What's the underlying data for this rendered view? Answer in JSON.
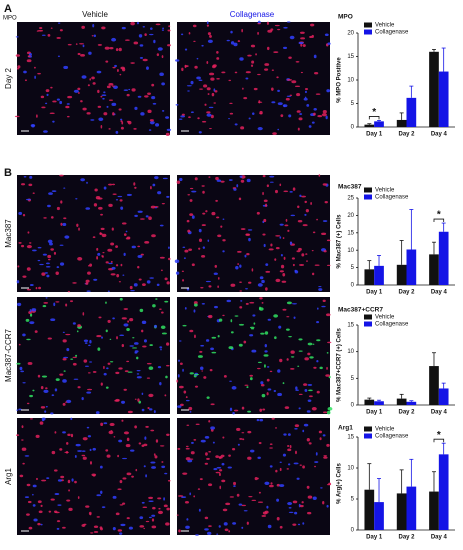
{
  "panels": [
    {
      "label": "A",
      "stain": "MPO",
      "columns": [
        "Vehicle",
        "Collagenase"
      ],
      "rows": [
        "Day 2"
      ]
    },
    {
      "label": "B",
      "columns": [
        "Vehicle",
        "Collagenase"
      ],
      "rows": [
        "Mac387",
        "Mac387-CCR7",
        "Arg1"
      ]
    }
  ],
  "chart_data": [
    {
      "type": "bar",
      "title": "MPO",
      "y_label": "% MPO Positive",
      "categories": [
        "Day 1",
        "Day 2",
        "Day 4"
      ],
      "series": [
        {
          "name": "Vehicle",
          "color": "#111111",
          "values": [
            0.5,
            1.5,
            16
          ],
          "errors": [
            0.2,
            1.5,
            0.5
          ]
        },
        {
          "name": "Collagenase",
          "color": "#1414e6",
          "values": [
            1.2,
            6.2,
            11.8
          ],
          "errors": [
            0.2,
            2.5,
            5
          ]
        }
      ],
      "ylim": [
        0,
        20
      ],
      "yticks": [
        0,
        5,
        10,
        15,
        20
      ],
      "annotations": [
        {
          "text": "*",
          "x": "Day 1"
        }
      ]
    },
    {
      "type": "bar",
      "title": "Mac387",
      "y_label": "% Mac387 (+) Cells",
      "categories": [
        "Day 1",
        "Day 2",
        "Day 4"
      ],
      "series": [
        {
          "name": "Vehicle",
          "color": "#111111",
          "values": [
            4.5,
            5.8,
            8.8
          ],
          "errors": [
            2.5,
            7,
            3.5
          ]
        },
        {
          "name": "Collagenase",
          "color": "#1414e6",
          "values": [
            5.5,
            10.2,
            15.3
          ],
          "errors": [
            3,
            11.5,
            2.5
          ]
        }
      ],
      "ylim": [
        0,
        25
      ],
      "yticks": [
        0,
        5,
        10,
        15,
        20,
        25
      ],
      "annotations": [
        {
          "text": "*",
          "x": "Day 4"
        }
      ]
    },
    {
      "type": "bar",
      "title": "Mac387+CCR7",
      "y_label": "% Mac387+CCR7 (+) Cells",
      "categories": [
        "Day 1",
        "Day 2",
        "Day 4"
      ],
      "series": [
        {
          "name": "Vehicle",
          "color": "#111111",
          "values": [
            1,
            1.2,
            7.3
          ],
          "errors": [
            0.3,
            0.8,
            2.5
          ]
        },
        {
          "name": "Collagenase",
          "color": "#1414e6",
          "values": [
            0.7,
            0.6,
            3.1
          ],
          "errors": [
            0.2,
            0.2,
            1
          ]
        }
      ],
      "ylim": [
        0,
        15
      ],
      "yticks": [
        0,
        5,
        10,
        15
      ],
      "annotations": []
    },
    {
      "type": "bar",
      "title": "Arg1",
      "y_label": "% Arg(+) Cells",
      "categories": [
        "Day 1",
        "Day 2",
        "Day 4"
      ],
      "series": [
        {
          "name": "Vehicle",
          "color": "#111111",
          "values": [
            6.5,
            5.9,
            6.2
          ],
          "errors": [
            4.2,
            3.8,
            3.2
          ]
        },
        {
          "name": "Collagenase",
          "color": "#1414e6",
          "values": [
            4.5,
            7.0,
            12.2
          ],
          "errors": [
            3.8,
            4.4,
            1.8
          ]
        }
      ],
      "ylim": [
        0,
        15
      ],
      "yticks": [
        0,
        5,
        10,
        15
      ],
      "annotations": [
        {
          "text": "*",
          "x": "Day 4"
        }
      ]
    }
  ]
}
